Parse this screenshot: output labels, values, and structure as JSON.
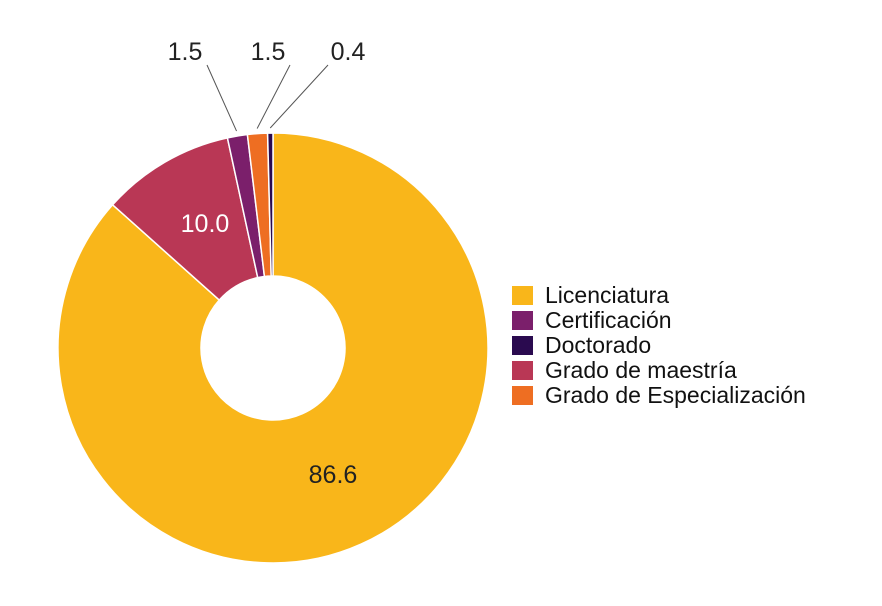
{
  "chart_data": {
    "type": "pie",
    "donut": true,
    "title": "",
    "categories": [
      "Licenciatura",
      "Grado de maestría",
      "Certificación",
      "Grado de Especialización",
      "Doctorado"
    ],
    "values": [
      86.6,
      10.0,
      1.5,
      1.5,
      0.4
    ],
    "value_labels": [
      "86.6",
      "10.0",
      "1.5",
      "1.5",
      "0.4"
    ],
    "colors": [
      "#F9B61A",
      "#B93755",
      "#7B1F6B",
      "#EE6E22",
      "#2A0A4F"
    ],
    "legend": {
      "placement": "right",
      "entries": [
        {
          "label": "Licenciatura",
          "color": "#F9B61A"
        },
        {
          "label": "Certificación",
          "color": "#7B1F6B"
        },
        {
          "label": "Doctorado",
          "color": "#2A0A4F"
        },
        {
          "label": "Grado de maestría",
          "color": "#B93755"
        },
        {
          "label": "Grado de Especialización",
          "color": "#EE6E22"
        }
      ]
    }
  }
}
